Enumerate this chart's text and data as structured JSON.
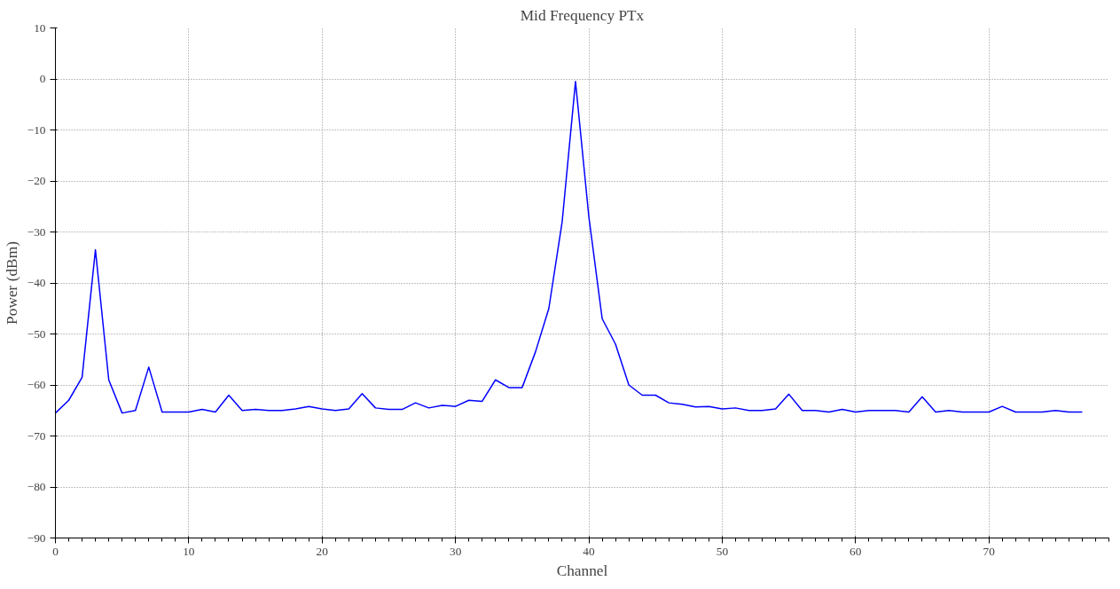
{
  "chart_data": {
    "type": "line",
    "title": "Mid Frequency PTx",
    "xlabel": "Channel",
    "ylabel": "Power (dBm)",
    "x": [
      0,
      1,
      2,
      3,
      4,
      5,
      6,
      7,
      8,
      9,
      10,
      11,
      12,
      13,
      14,
      15,
      16,
      17,
      18,
      19,
      20,
      21,
      22,
      23,
      24,
      25,
      26,
      27,
      28,
      29,
      30,
      31,
      32,
      33,
      34,
      35,
      36,
      37,
      38,
      39,
      40,
      41,
      42,
      43,
      44,
      45,
      46,
      47,
      48,
      49,
      50,
      51,
      52,
      53,
      54,
      55,
      56,
      57,
      58,
      59,
      60,
      61,
      62,
      63,
      64,
      65,
      66,
      67,
      68,
      69,
      70,
      71,
      72,
      73,
      74,
      75,
      76,
      77
    ],
    "series": [
      {
        "color": "#0000ff",
        "values": [
          -65.5,
          -63,
          -58.5,
          -33.5,
          -59,
          -65.5,
          -65,
          -56.5,
          -65.3,
          -65.3,
          -65.3,
          -64.8,
          -65.3,
          -62,
          -65,
          -64.8,
          -65,
          -65,
          -64.7,
          -64.2,
          -64.7,
          -65,
          -64.7,
          -61.7,
          -64.5,
          -64.8,
          -64.8,
          -63.5,
          -64.5,
          -64,
          -64.2,
          -63,
          -63.2,
          -59,
          -60.5,
          -60.5,
          -53.5,
          -45,
          -28,
          -0.5,
          -27,
          -47,
          -52,
          -60,
          -62,
          -62,
          -63.5,
          -63.8,
          -64.3,
          -64.2,
          -64.7,
          -64.5,
          -65,
          -65,
          -64.7,
          -61.8,
          -65,
          -65,
          -65.3,
          -64.8,
          -65.3,
          -65,
          -65,
          -65,
          -65.3,
          -62.3,
          -65.3,
          -65,
          -65.3,
          -65.3,
          -65.3,
          -64.2,
          -65.3,
          -65.3,
          -65.3,
          -65,
          -65.3,
          -65.3
        ]
      }
    ],
    "xlim": [
      0,
      79
    ],
    "ylim": [
      -90,
      10
    ],
    "xticks": [
      0,
      10,
      20,
      30,
      40,
      50,
      60,
      70
    ],
    "yticks": [
      -90,
      -80,
      -70,
      -60,
      -50,
      -40,
      -30,
      -20,
      -10,
      0,
      10
    ],
    "grid": true,
    "marker": "none",
    "line_style": "solid"
  }
}
